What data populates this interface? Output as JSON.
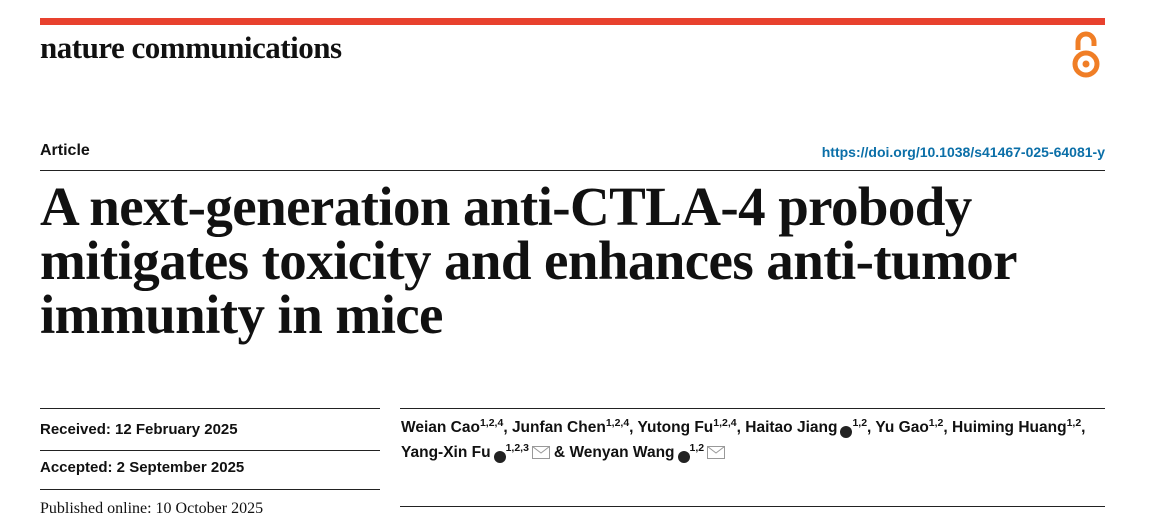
{
  "header": {
    "journal": "nature communications"
  },
  "article": {
    "kind": "Article",
    "doi": "https://doi.org/10.1038/s41467-025-64081-y",
    "title": "A next-generation anti-CTLA-4 probody mitigates toxicity and enhances anti-tumor immunity in mice"
  },
  "dates": {
    "received": "Received: 12 February 2025",
    "accepted": "Accepted: 2 September 2025",
    "published": "Published online: 10 October 2025"
  },
  "authors": [
    {
      "name": "Weian Cao",
      "affiliations": "1,2,4",
      "after": ","
    },
    {
      "name": "Junfan Chen",
      "affiliations": "1,2,4",
      "after": ","
    },
    {
      "name": "Yutong Fu",
      "affiliations": "1,2,4",
      "after": ","
    },
    {
      "name": "Haitao Jiang",
      "orcid": true,
      "affiliations": "1,2",
      "after": ","
    },
    {
      "name": "Yu Gao",
      "affiliations": "1,2",
      "after": ","
    },
    {
      "name": "Huiming Huang",
      "affiliations": "1,2",
      "after": ","
    },
    {
      "name": "Yang-Xin Fu",
      "orcid": true,
      "affiliations": "1,2,3",
      "corresponding": true,
      "after": "&"
    },
    {
      "name": "Wenyan Wang",
      "orcid": true,
      "affiliations": "1,2",
      "corresponding": true
    }
  ]
}
